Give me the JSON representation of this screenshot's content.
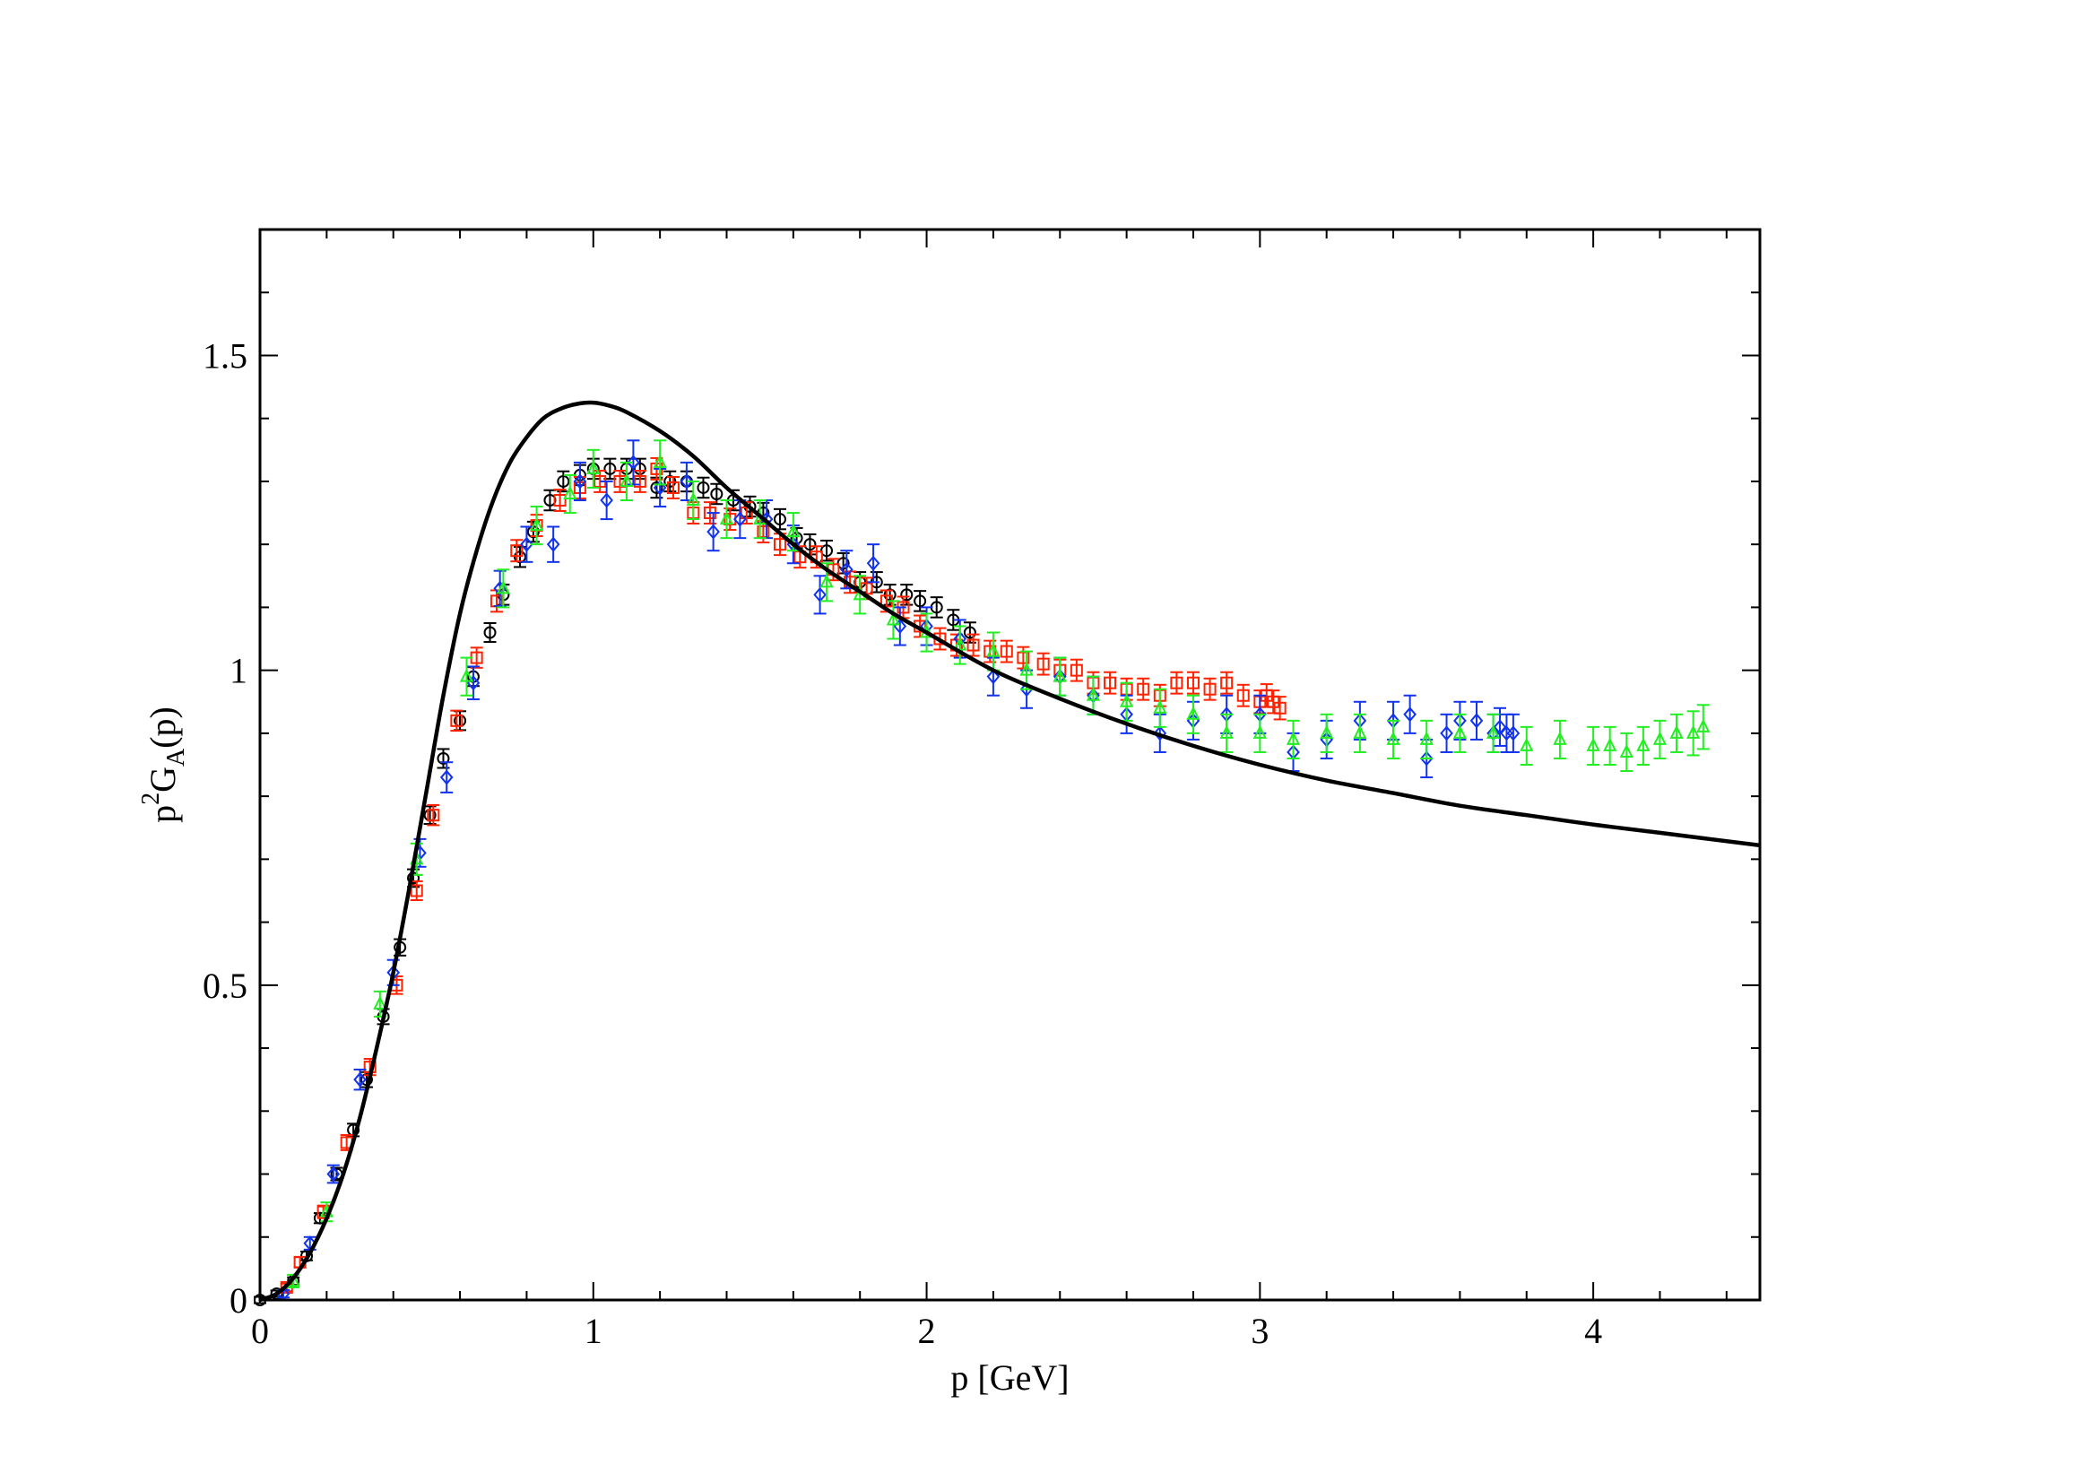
{
  "chart_data": {
    "type": "scatter",
    "title": "",
    "xlabel": "p [GeV]",
    "ylabel": {
      "base": "p",
      "sup": "2",
      "mid": "G",
      "sub": "A",
      "tail": "(p)"
    },
    "xlim": [
      0,
      4.5
    ],
    "ylim": [
      0,
      1.7
    ],
    "xticks": [
      0,
      1,
      2,
      3,
      4
    ],
    "xtick_labels": [
      "0",
      "1",
      "2",
      "3",
      "4"
    ],
    "yticks": [
      0,
      0.5,
      1,
      1.5
    ],
    "ytick_labels": [
      "0",
      "0.5",
      "1",
      "1.5"
    ],
    "grid": false,
    "legend": false,
    "curve": {
      "color": "#000000",
      "x": [
        0,
        0.05,
        0.1,
        0.15,
        0.2,
        0.25,
        0.3,
        0.35,
        0.4,
        0.45,
        0.5,
        0.55,
        0.6,
        0.65,
        0.7,
        0.75,
        0.8,
        0.85,
        0.9,
        0.95,
        1.0,
        1.05,
        1.1,
        1.2,
        1.3,
        1.4,
        1.5,
        1.6,
        1.7,
        1.8,
        1.9,
        2.0,
        2.2,
        2.4,
        2.6,
        2.8,
        3.0,
        3.2,
        3.4,
        3.6,
        3.8,
        4.0,
        4.2,
        4.5
      ],
      "y": [
        0,
        0.01,
        0.035,
        0.075,
        0.13,
        0.2,
        0.29,
        0.4,
        0.52,
        0.66,
        0.81,
        0.96,
        1.09,
        1.19,
        1.27,
        1.33,
        1.37,
        1.4,
        1.415,
        1.423,
        1.425,
        1.42,
        1.41,
        1.38,
        1.34,
        1.29,
        1.245,
        1.2,
        1.16,
        1.125,
        1.09,
        1.06,
        1.0,
        0.955,
        0.915,
        0.88,
        0.85,
        0.825,
        0.805,
        0.785,
        0.77,
        0.755,
        0.742,
        0.722
      ]
    },
    "series": [
      {
        "marker": "circle",
        "color": "#000000",
        "x": [
          0.0,
          0.05,
          0.1,
          0.14,
          0.18,
          0.23,
          0.28,
          0.32,
          0.37,
          0.42,
          0.46,
          0.51,
          0.55,
          0.6,
          0.64,
          0.69,
          0.73,
          0.78,
          0.82,
          0.87,
          0.91,
          0.96,
          1.0,
          1.05,
          1.1,
          1.14,
          1.19,
          1.23,
          1.28,
          1.33,
          1.37,
          1.42,
          1.47,
          1.51,
          1.56,
          1.61,
          1.65,
          1.7,
          1.75,
          1.8,
          1.85,
          1.89,
          1.94,
          1.98,
          2.03,
          2.08,
          2.13
        ],
        "y": [
          0.0,
          0.01,
          0.03,
          0.07,
          0.13,
          0.2,
          0.27,
          0.35,
          0.45,
          0.56,
          0.67,
          0.77,
          0.86,
          0.92,
          0.99,
          1.06,
          1.12,
          1.18,
          1.22,
          1.27,
          1.3,
          1.31,
          1.32,
          1.32,
          1.32,
          1.32,
          1.29,
          1.3,
          1.3,
          1.29,
          1.28,
          1.27,
          1.26,
          1.25,
          1.24,
          1.21,
          1.2,
          1.19,
          1.17,
          1.14,
          1.14,
          1.12,
          1.12,
          1.11,
          1.1,
          1.08,
          1.06
        ],
        "err": [
          0.005,
          0.005,
          0.006,
          0.007,
          0.008,
          0.01,
          0.01,
          0.012,
          0.012,
          0.013,
          0.014,
          0.014,
          0.015,
          0.015,
          0.015,
          0.015,
          0.016,
          0.016,
          0.016,
          0.016,
          0.016,
          0.016,
          0.016,
          0.016,
          0.016,
          0.016,
          0.016,
          0.016,
          0.016,
          0.016,
          0.016,
          0.016,
          0.016,
          0.016,
          0.016,
          0.016,
          0.016,
          0.016,
          0.016,
          0.016,
          0.016,
          0.016,
          0.016,
          0.016,
          0.016,
          0.016,
          0.016
        ]
      },
      {
        "marker": "square",
        "color": "#ff2200",
        "x": [
          0.08,
          0.12,
          0.19,
          0.26,
          0.33,
          0.41,
          0.47,
          0.52,
          0.59,
          0.65,
          0.71,
          0.77,
          0.83,
          0.9,
          0.96,
          1.02,
          1.08,
          1.14,
          1.19,
          1.24,
          1.3,
          1.35,
          1.41,
          1.46,
          1.51,
          1.56,
          1.62,
          1.67,
          1.72,
          1.77,
          1.82,
          1.88,
          1.93,
          1.98,
          2.04,
          2.09,
          2.14,
          2.19,
          2.24,
          2.29,
          2.35,
          2.4,
          2.45,
          2.5,
          2.55,
          2.6,
          2.65,
          2.7,
          2.75,
          2.8,
          2.85,
          2.9,
          2.95,
          3.0,
          3.02,
          3.04,
          3.06
        ],
        "y": [
          0.02,
          0.06,
          0.14,
          0.25,
          0.37,
          0.5,
          0.65,
          0.77,
          0.92,
          1.02,
          1.11,
          1.19,
          1.23,
          1.27,
          1.29,
          1.3,
          1.3,
          1.3,
          1.32,
          1.29,
          1.25,
          1.25,
          1.24,
          1.25,
          1.22,
          1.2,
          1.18,
          1.18,
          1.16,
          1.14,
          1.13,
          1.11,
          1.1,
          1.07,
          1.05,
          1.04,
          1.04,
          1.03,
          1.03,
          1.02,
          1.01,
          1.0,
          1.0,
          0.98,
          0.98,
          0.97,
          0.97,
          0.96,
          0.98,
          0.98,
          0.97,
          0.98,
          0.96,
          0.95,
          0.96,
          0.95,
          0.94
        ],
        "err": [
          0.006,
          0.008,
          0.01,
          0.012,
          0.013,
          0.014,
          0.015,
          0.016,
          0.016,
          0.016,
          0.017,
          0.017,
          0.017,
          0.017,
          0.017,
          0.017,
          0.017,
          0.017,
          0.017,
          0.017,
          0.017,
          0.017,
          0.017,
          0.017,
          0.017,
          0.017,
          0.017,
          0.017,
          0.017,
          0.017,
          0.017,
          0.017,
          0.017,
          0.017,
          0.017,
          0.017,
          0.017,
          0.017,
          0.017,
          0.017,
          0.017,
          0.017,
          0.017,
          0.017,
          0.017,
          0.017,
          0.017,
          0.017,
          0.017,
          0.017,
          0.017,
          0.017,
          0.017,
          0.018,
          0.018,
          0.018,
          0.018
        ]
      },
      {
        "marker": "diamond",
        "color": "#1133ee",
        "x": [
          0.07,
          0.15,
          0.22,
          0.3,
          0.4,
          0.48,
          0.56,
          0.64,
          0.72,
          0.8,
          0.88,
          0.96,
          1.04,
          1.12,
          1.2,
          1.28,
          1.36,
          1.44,
          1.52,
          1.6,
          1.68,
          1.76,
          1.84,
          1.92,
          2.0,
          2.1,
          2.2,
          2.3,
          2.4,
          2.5,
          2.6,
          2.7,
          2.8,
          2.9,
          3.0,
          3.1,
          3.2,
          3.3,
          3.4,
          3.45,
          3.5,
          3.56,
          3.6,
          3.65,
          3.7,
          3.72,
          3.74,
          3.76
        ],
        "y": [
          0.01,
          0.09,
          0.2,
          0.35,
          0.52,
          0.71,
          0.83,
          0.98,
          1.13,
          1.2,
          1.2,
          1.3,
          1.27,
          1.33,
          1.29,
          1.3,
          1.22,
          1.24,
          1.24,
          1.2,
          1.12,
          1.16,
          1.17,
          1.07,
          1.07,
          1.05,
          0.99,
          0.97,
          0.99,
          0.96,
          0.93,
          0.9,
          0.92,
          0.93,
          0.93,
          0.87,
          0.89,
          0.92,
          0.92,
          0.93,
          0.86,
          0.9,
          0.92,
          0.92,
          0.9,
          0.91,
          0.9,
          0.9
        ],
        "err": [
          0.006,
          0.01,
          0.014,
          0.016,
          0.02,
          0.022,
          0.024,
          0.026,
          0.028,
          0.028,
          0.028,
          0.03,
          0.03,
          0.035,
          0.03,
          0.03,
          0.03,
          0.03,
          0.03,
          0.03,
          0.03,
          0.03,
          0.03,
          0.03,
          0.03,
          0.03,
          0.03,
          0.03,
          0.03,
          0.03,
          0.03,
          0.03,
          0.03,
          0.03,
          0.03,
          0.03,
          0.03,
          0.03,
          0.03,
          0.03,
          0.03,
          0.03,
          0.03,
          0.03,
          0.03,
          0.03,
          0.03,
          0.03
        ]
      },
      {
        "marker": "triangle",
        "color": "#22ee22",
        "x": [
          0.1,
          0.2,
          0.36,
          0.47,
          0.62,
          0.73,
          0.83,
          0.93,
          1.0,
          1.1,
          1.2,
          1.3,
          1.4,
          1.5,
          1.6,
          1.7,
          1.8,
          1.9,
          2.0,
          2.1,
          2.2,
          2.3,
          2.4,
          2.5,
          2.6,
          2.7,
          2.8,
          2.9,
          3.0,
          3.1,
          3.2,
          3.3,
          3.4,
          3.5,
          3.6,
          3.7,
          3.8,
          3.9,
          4.0,
          4.05,
          4.1,
          4.15,
          4.2,
          4.25,
          4.3,
          4.33
        ],
        "y": [
          0.03,
          0.14,
          0.47,
          0.7,
          0.99,
          1.13,
          1.23,
          1.28,
          1.32,
          1.3,
          1.33,
          1.27,
          1.24,
          1.24,
          1.22,
          1.14,
          1.12,
          1.08,
          1.06,
          1.04,
          1.03,
          1.0,
          0.99,
          0.96,
          0.95,
          0.94,
          0.93,
          0.9,
          0.9,
          0.89,
          0.9,
          0.9,
          0.89,
          0.89,
          0.9,
          0.9,
          0.88,
          0.89,
          0.88,
          0.88,
          0.87,
          0.88,
          0.89,
          0.9,
          0.9,
          0.91
        ],
        "err": [
          0.01,
          0.015,
          0.02,
          0.025,
          0.03,
          0.03,
          0.03,
          0.03,
          0.03,
          0.03,
          0.035,
          0.03,
          0.03,
          0.03,
          0.03,
          0.03,
          0.03,
          0.03,
          0.03,
          0.03,
          0.03,
          0.03,
          0.03,
          0.03,
          0.03,
          0.03,
          0.03,
          0.03,
          0.03,
          0.03,
          0.03,
          0.03,
          0.03,
          0.03,
          0.03,
          0.03,
          0.03,
          0.03,
          0.03,
          0.03,
          0.03,
          0.03,
          0.03,
          0.03,
          0.035,
          0.035
        ]
      }
    ]
  }
}
